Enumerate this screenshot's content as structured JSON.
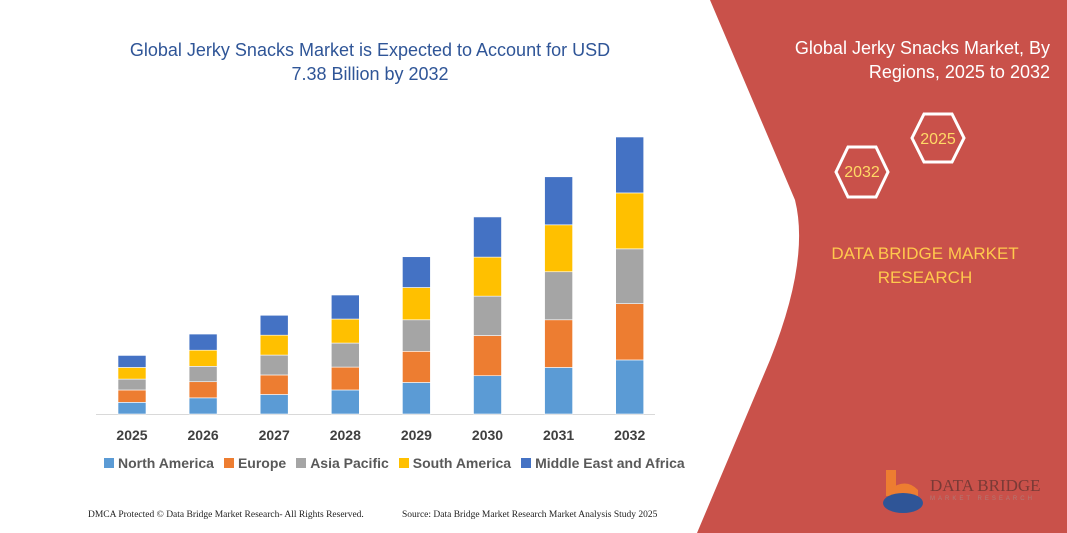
{
  "title": "Global Jerky Snacks Market is Expected to Account for USD 7.38 Billion by 2032",
  "right_panel": {
    "title": "Global Jerky Snacks Market, By Regions, 2025 to 2032",
    "hex_labels": [
      "2025",
      "2032"
    ],
    "brand": "DATA BRIDGE MARKET RESEARCH",
    "logo_text": "DATA BRIDGE",
    "logo_subtext": "MARKET RESEARCH",
    "color": "#C9514A"
  },
  "footer": {
    "left": "DMCA Protected © Data Bridge Market Research- All Rights Reserved.",
    "right": "Source: Data Bridge Market Research  Market Analysis Study 2025"
  },
  "chart_data": {
    "type": "bar",
    "stacked": true,
    "title": "Global Jerky Snacks Market is Expected to Account for USD 7.38 Billion by 2032",
    "categories": [
      "2025",
      "2026",
      "2027",
      "2028",
      "2029",
      "2030",
      "2031",
      "2032"
    ],
    "legend_position": "bottom",
    "grid": false,
    "series": [
      {
        "name": "North America",
        "color": "#5B9BD5",
        "values": [
          0.31,
          0.43,
          0.52,
          0.64,
          0.84,
          1.02,
          1.24,
          1.44
        ]
      },
      {
        "name": "Europe",
        "color": "#ED7D31",
        "values": [
          0.33,
          0.43,
          0.52,
          0.61,
          0.83,
          1.07,
          1.27,
          1.5
        ]
      },
      {
        "name": "Asia Pacific",
        "color": "#A5A5A5",
        "values": [
          0.29,
          0.41,
          0.53,
          0.64,
          0.84,
          1.05,
          1.28,
          1.46
        ]
      },
      {
        "name": "South America",
        "color": "#FFC000",
        "values": [
          0.31,
          0.43,
          0.53,
          0.64,
          0.86,
          1.04,
          1.25,
          1.49
        ]
      },
      {
        "name": "Middle East and Africa",
        "color": "#4472C4",
        "values": [
          0.32,
          0.43,
          0.53,
          0.64,
          0.82,
          1.07,
          1.28,
          1.49
        ]
      }
    ]
  }
}
